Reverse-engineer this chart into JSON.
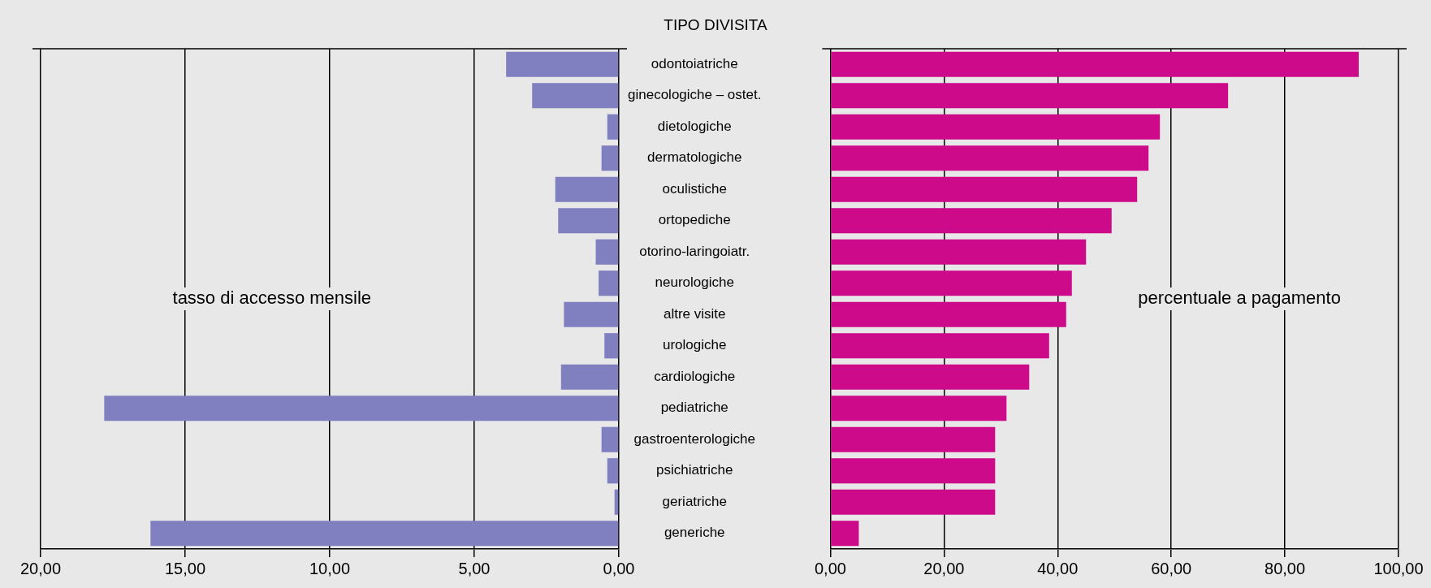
{
  "chart_data": [
    {
      "type": "bar",
      "orientation": "horizontal",
      "title": "TIPO DIVISITA",
      "categories": [
        "odontoiatriche",
        "ginecologiche – ostet.",
        "dietologiche",
        "dermatologiche",
        "oculistiche",
        "ortopediche",
        "otorino-laringoiatr.",
        "neurologiche",
        "altre visite",
        "urologiche",
        "cardiologiche",
        "pediatriche",
        "gastroenterologiche",
        "psichiatriche",
        "geriatriche",
        "generiche"
      ],
      "values": [
        3.9,
        3.0,
        0.4,
        0.6,
        2.2,
        2.1,
        0.8,
        0.7,
        1.9,
        0.5,
        2.0,
        17.8,
        0.6,
        0.4,
        0.15,
        16.2
      ],
      "color": "#8080c0",
      "xlim": [
        20,
        0
      ],
      "xticks": [
        {
          "value": 20,
          "label": "20,00"
        },
        {
          "value": 15,
          "label": "15,00"
        },
        {
          "value": 10,
          "label": "10,00"
        },
        {
          "value": 5,
          "label": "5,00"
        },
        {
          "value": 0,
          "label": "0,00"
        }
      ],
      "grid": "x",
      "annotations": [
        "tasso di accesso mensile"
      ]
    },
    {
      "type": "bar",
      "orientation": "horizontal",
      "categories": [
        null,
        null,
        null,
        null,
        null,
        null,
        null,
        null,
        null,
        null,
        null,
        null,
        null,
        null,
        null,
        null
      ],
      "values": [
        93,
        70,
        58,
        56,
        54,
        49.5,
        45,
        42.5,
        41.5,
        38.5,
        35,
        31,
        29,
        29,
        29,
        5
      ],
      "color": "#cc0a8a",
      "xlim": [
        0,
        100
      ],
      "xticks": [
        {
          "value": 0,
          "label": "0,00"
        },
        {
          "value": 20,
          "label": "20,00"
        },
        {
          "value": 40,
          "label": "40,00"
        },
        {
          "value": 60,
          "label": "60,00"
        },
        {
          "value": 80,
          "label": "80,00"
        },
        {
          "value": 100,
          "label": "100,00"
        }
      ],
      "grid": "x",
      "tick_labels": "x",
      "annotations": [
        "percentuale a pagamento"
      ]
    }
  ]
}
